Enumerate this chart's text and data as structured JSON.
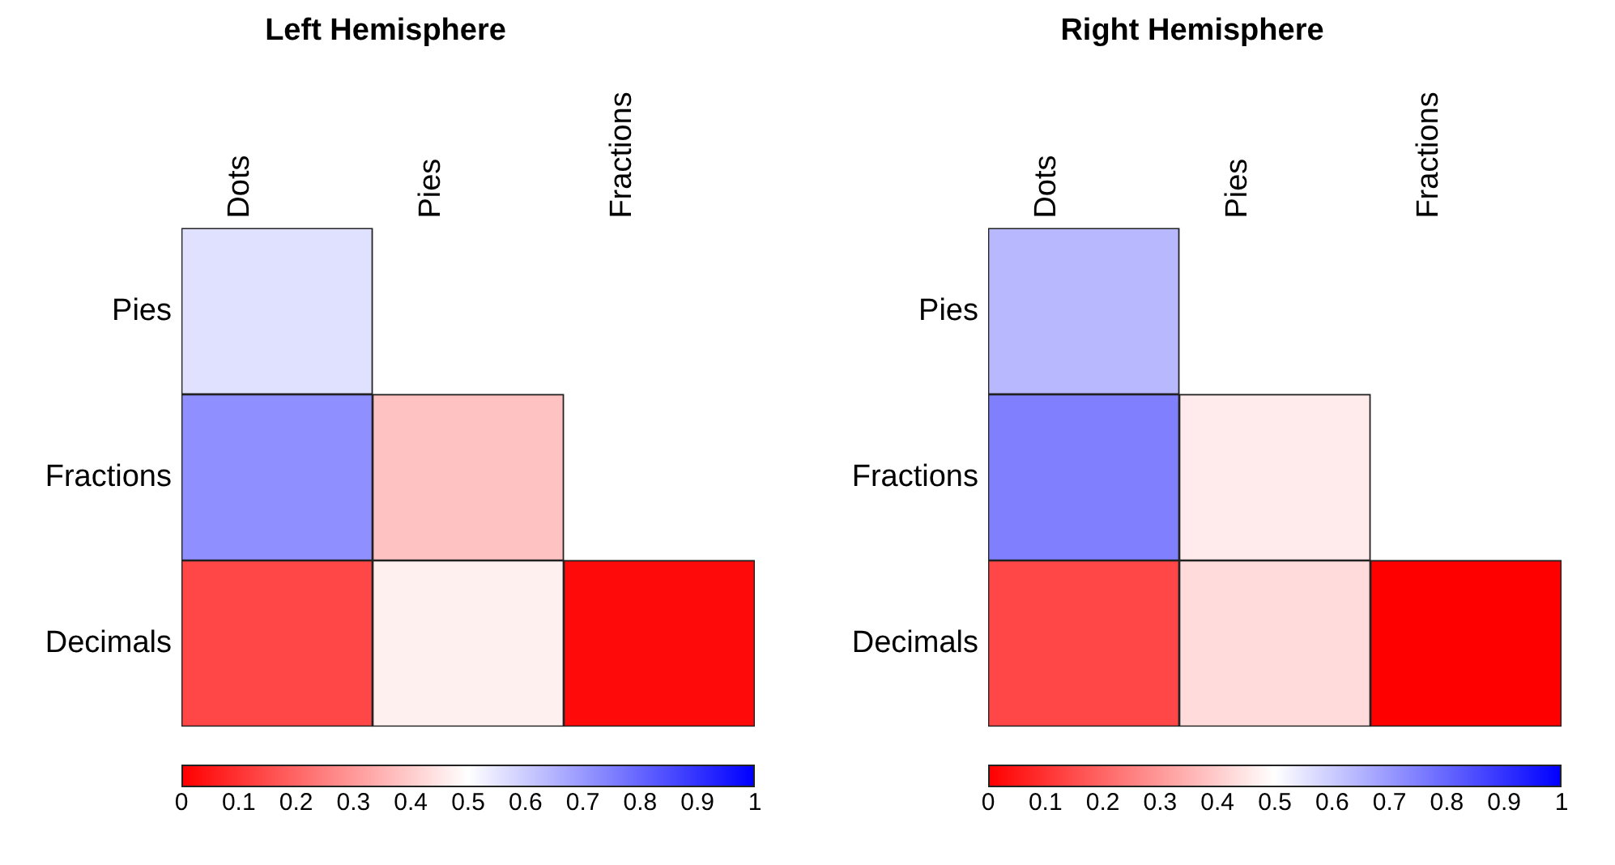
{
  "chart_data": [
    {
      "type": "heatmap",
      "title": "Left Hemisphere",
      "categories": [
        "Dots",
        "Pies",
        "Fractions"
      ],
      "y_categories": [
        "Pies",
        "Fractions",
        "Decimals"
      ],
      "cells": [
        [
          0.56,
          null,
          null
        ],
        [
          0.72,
          0.38,
          null
        ],
        [
          0.14,
          0.47,
          0.02
        ]
      ],
      "clim": [
        0,
        1
      ],
      "cticks": [
        0,
        0.1,
        0.2,
        0.3,
        0.4,
        0.5,
        0.6,
        0.7,
        0.8,
        0.9,
        1
      ],
      "grid": false
    },
    {
      "type": "heatmap",
      "title": "Right Hemisphere",
      "categories": [
        "Dots",
        "Pies",
        "Fractions"
      ],
      "y_categories": [
        "Pies",
        "Fractions",
        "Decimals"
      ],
      "cells": [
        [
          0.64,
          null,
          null
        ],
        [
          0.75,
          0.46,
          null
        ],
        [
          0.14,
          0.43,
          0
        ]
      ],
      "clim": [
        0,
        1
      ],
      "cticks": [
        0,
        0.1,
        0.2,
        0.3,
        0.4,
        0.5,
        0.6,
        0.7,
        0.8,
        0.9,
        1
      ],
      "grid": false
    }
  ]
}
